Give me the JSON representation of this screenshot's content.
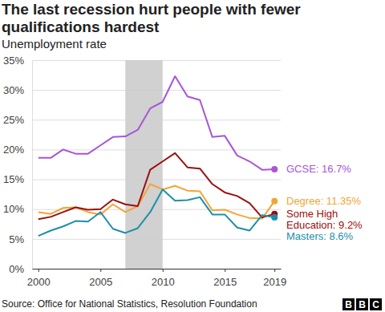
{
  "chart_data": {
    "type": "line",
    "title": "The last recession hurt people with fewer qualifications hardest",
    "subtitle": "Unemployment rate",
    "source": "Source: Office for National Statistics, Resolution Foundation",
    "logo": "BBC",
    "x": [
      2000,
      2001,
      2002,
      2003,
      2004,
      2005,
      2006,
      2007,
      2008,
      2009,
      2010,
      2011,
      2012,
      2013,
      2014,
      2015,
      2016,
      2017,
      2018,
      2019
    ],
    "series": [
      {
        "name": "GCSE: 16.7%",
        "color": "#a855d8",
        "values": [
          18.6,
          18.6,
          20.0,
          19.3,
          19.3,
          20.7,
          22.1,
          22.2,
          23.3,
          26.9,
          28.0,
          32.3,
          28.9,
          28.3,
          22.1,
          22.3,
          19.0,
          18.0,
          16.6,
          16.7
        ]
      },
      {
        "name": "Degree: 11.35%",
        "color": "#f2a535",
        "values": [
          9.5,
          9.2,
          10.2,
          10.3,
          9.5,
          9.1,
          10.8,
          9.5,
          10.5,
          14.2,
          13.3,
          13.9,
          13.1,
          13.0,
          9.8,
          9.9,
          9.1,
          8.5,
          8.4,
          11.35
        ]
      },
      {
        "name": "Some High Education: 9.2%",
        "color": "#9b1010",
        "values": [
          8.3,
          8.7,
          9.5,
          10.3,
          9.9,
          10.0,
          11.6,
          10.8,
          10.5,
          16.6,
          18.0,
          19.4,
          17.0,
          16.8,
          14.2,
          12.8,
          12.2,
          11.0,
          8.6,
          9.2
        ]
      },
      {
        "name": "Masters: 8.6%",
        "color": "#1e8fa8",
        "values": [
          5.5,
          6.4,
          7.1,
          8.0,
          7.9,
          9.5,
          6.7,
          6.0,
          6.8,
          9.5,
          13.3,
          11.4,
          11.5,
          12.0,
          9.1,
          9.1,
          6.9,
          6.4,
          9.0,
          8.6
        ]
      }
    ],
    "xlim": [
      1999.5,
      2019.5
    ],
    "xticks": [
      2000,
      2005,
      2010,
      2015,
      2019
    ],
    "ylim": [
      0,
      35
    ],
    "yticks": [
      {
        "value": 0,
        "label": "0%"
      },
      {
        "value": 5,
        "label": "5%"
      },
      {
        "value": 10,
        "label": "10%"
      },
      {
        "value": 15,
        "label": "15%"
      },
      {
        "value": 20,
        "label": "20%"
      },
      {
        "value": 25,
        "label": "25%"
      },
      {
        "value": 30,
        "label": "30%"
      },
      {
        "value": 35,
        "label": "35%"
      }
    ],
    "grid": true,
    "marker": "circle",
    "shaded_x_ranges": [
      [
        2007,
        2010
      ]
    ]
  }
}
